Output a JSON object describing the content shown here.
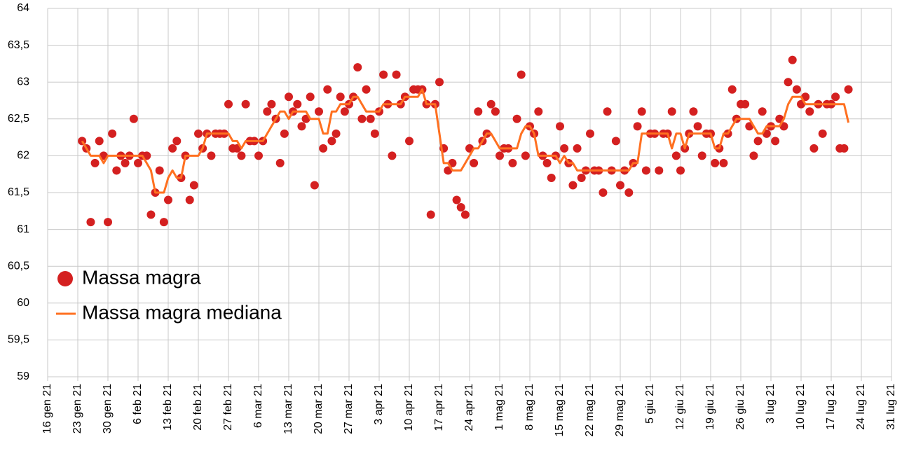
{
  "chart_data": {
    "type": "scatter-line",
    "x": [
      "2021-01-24",
      "2021-01-25",
      "2021-01-26",
      "2021-01-27",
      "2021-01-28",
      "2021-01-29",
      "2021-01-30",
      "2021-01-31",
      "2021-02-01",
      "2021-02-02",
      "2021-02-03",
      "2021-02-04",
      "2021-02-05",
      "2021-02-06",
      "2021-02-07",
      "2021-02-08",
      "2021-02-09",
      "2021-02-10",
      "2021-02-11",
      "2021-02-12",
      "2021-02-13",
      "2021-02-14",
      "2021-02-15",
      "2021-02-16",
      "2021-02-17",
      "2021-02-18",
      "2021-02-19",
      "2021-02-20",
      "2021-02-21",
      "2021-02-22",
      "2021-02-23",
      "2021-02-24",
      "2021-02-25",
      "2021-02-26",
      "2021-02-27",
      "2021-02-28",
      "2021-03-01",
      "2021-03-02",
      "2021-03-03",
      "2021-03-04",
      "2021-03-05",
      "2021-03-06",
      "2021-03-07",
      "2021-03-08",
      "2021-03-09",
      "2021-03-10",
      "2021-03-11",
      "2021-03-12",
      "2021-03-13",
      "2021-03-14",
      "2021-03-15",
      "2021-03-16",
      "2021-03-17",
      "2021-03-18",
      "2021-03-19",
      "2021-03-20",
      "2021-03-21",
      "2021-03-22",
      "2021-03-23",
      "2021-03-24",
      "2021-03-25",
      "2021-03-26",
      "2021-03-27",
      "2021-03-28",
      "2021-03-29",
      "2021-03-30",
      "2021-03-31",
      "2021-04-01",
      "2021-04-02",
      "2021-04-03",
      "2021-04-04",
      "2021-04-05",
      "2021-04-06",
      "2021-04-07",
      "2021-04-08",
      "2021-04-09",
      "2021-04-10",
      "2021-04-11",
      "2021-04-12",
      "2021-04-13",
      "2021-04-14",
      "2021-04-15",
      "2021-04-16",
      "2021-04-17",
      "2021-04-18",
      "2021-04-19",
      "2021-04-20",
      "2021-04-21",
      "2021-04-22",
      "2021-04-23",
      "2021-04-24",
      "2021-04-25",
      "2021-04-26",
      "2021-04-27",
      "2021-04-28",
      "2021-04-29",
      "2021-04-30",
      "2021-05-01",
      "2021-05-02",
      "2021-05-03",
      "2021-05-04",
      "2021-05-05",
      "2021-05-06",
      "2021-05-07",
      "2021-05-08",
      "2021-05-09",
      "2021-05-10",
      "2021-05-11",
      "2021-05-12",
      "2021-05-13",
      "2021-05-14",
      "2021-05-15",
      "2021-05-16",
      "2021-05-17",
      "2021-05-18",
      "2021-05-19",
      "2021-05-20",
      "2021-05-21",
      "2021-05-22",
      "2021-05-23",
      "2021-05-24",
      "2021-05-25",
      "2021-05-26",
      "2021-05-27",
      "2021-05-28",
      "2021-05-29",
      "2021-05-30",
      "2021-05-31",
      "2021-06-01",
      "2021-06-02",
      "2021-06-03",
      "2021-06-04",
      "2021-06-05",
      "2021-06-06",
      "2021-06-07",
      "2021-06-08",
      "2021-06-09",
      "2021-06-10",
      "2021-06-11",
      "2021-06-12",
      "2021-06-13",
      "2021-06-14",
      "2021-06-15",
      "2021-06-16",
      "2021-06-17",
      "2021-06-18",
      "2021-06-19",
      "2021-06-20",
      "2021-06-21",
      "2021-06-22",
      "2021-06-23",
      "2021-06-24",
      "2021-06-25",
      "2021-06-26",
      "2021-06-27",
      "2021-06-28",
      "2021-06-29",
      "2021-06-30",
      "2021-07-01",
      "2021-07-02",
      "2021-07-03",
      "2021-07-04",
      "2021-07-05",
      "2021-07-06",
      "2021-07-07",
      "2021-07-08",
      "2021-07-09",
      "2021-07-10",
      "2021-07-11",
      "2021-07-12",
      "2021-07-13",
      "2021-07-14",
      "2021-07-15",
      "2021-07-16",
      "2021-07-17",
      "2021-07-18",
      "2021-07-19",
      "2021-07-20",
      "2021-07-21"
    ],
    "series": [
      {
        "name": "Massa magra",
        "type": "scatter",
        "color": "#d42020",
        "values": [
          62.2,
          62.1,
          61.1,
          61.9,
          62.2,
          62.0,
          61.1,
          62.3,
          61.8,
          62.0,
          61.9,
          62.0,
          62.5,
          61.9,
          62.0,
          62.0,
          61.2,
          61.5,
          61.8,
          61.1,
          61.4,
          62.1,
          62.2,
          61.7,
          62.0,
          61.4,
          61.6,
          62.3,
          62.1,
          62.3,
          62.0,
          62.3,
          62.3,
          62.3,
          62.7,
          62.1,
          62.1,
          62.0,
          62.7,
          62.2,
          62.2,
          62.0,
          62.2,
          62.6,
          62.7,
          62.5,
          61.9,
          62.3,
          62.8,
          62.6,
          62.7,
          62.4,
          62.5,
          62.8,
          61.6,
          62.6,
          62.1,
          62.9,
          62.2,
          62.3,
          62.8,
          62.6,
          62.7,
          62.8,
          63.2,
          62.5,
          62.9,
          62.5,
          62.3,
          62.6,
          63.1,
          62.7,
          62.0,
          63.1,
          62.7,
          62.8,
          62.2,
          62.9,
          62.9,
          62.9,
          62.7,
          61.2,
          62.7,
          63.0,
          62.1,
          61.8,
          61.9,
          61.4,
          61.3,
          61.2,
          62.1,
          61.9,
          62.6,
          62.2,
          62.3,
          62.7,
          62.6,
          62.0,
          62.1,
          62.1,
          61.9,
          62.5,
          63.1,
          62.0,
          62.4,
          62.3,
          62.6,
          62.0,
          61.9,
          61.7,
          62.0,
          62.4,
          62.1,
          61.9,
          61.6,
          62.1,
          61.7,
          61.8,
          62.3,
          61.8,
          61.8,
          61.5,
          62.6,
          61.8,
          62.2,
          61.6,
          61.8,
          61.5,
          61.9,
          62.4,
          62.6,
          61.8,
          62.3,
          62.3,
          61.8,
          62.3,
          62.3,
          62.6,
          62.0,
          61.8,
          62.1,
          62.3,
          62.6,
          62.4,
          62.0,
          62.3,
          62.3,
          61.9,
          62.1,
          61.9,
          62.3,
          62.9,
          62.5,
          62.7,
          62.7,
          62.4,
          62.0,
          62.2,
          62.6,
          62.3,
          62.4,
          62.2,
          62.5,
          62.4,
          63.0,
          63.3,
          62.9,
          62.7,
          62.8,
          62.6,
          62.1,
          62.7,
          62.3,
          62.7,
          62.7,
          62.8,
          62.1,
          62.1,
          62.9
        ]
      },
      {
        "name": "Massa magra mediana",
        "type": "line",
        "color": "#ff7020",
        "values": [
          62.2,
          62.1,
          62.0,
          62.0,
          62.0,
          61.9,
          62.0,
          62.0,
          62.0,
          62.0,
          62.0,
          62.0,
          62.0,
          62.0,
          62.0,
          61.9,
          61.8,
          61.5,
          61.5,
          61.5,
          61.7,
          61.8,
          61.7,
          61.7,
          62.0,
          62.0,
          62.0,
          62.0,
          62.1,
          62.3,
          62.3,
          62.3,
          62.3,
          62.3,
          62.3,
          62.2,
          62.2,
          62.1,
          62.2,
          62.2,
          62.2,
          62.2,
          62.2,
          62.3,
          62.4,
          62.5,
          62.6,
          62.6,
          62.5,
          62.6,
          62.6,
          62.6,
          62.6,
          62.5,
          62.5,
          62.5,
          62.3,
          62.3,
          62.6,
          62.6,
          62.7,
          62.7,
          62.7,
          62.8,
          62.8,
          62.7,
          62.6,
          62.6,
          62.6,
          62.6,
          62.7,
          62.7,
          62.7,
          62.7,
          62.7,
          62.8,
          62.8,
          62.8,
          62.8,
          62.9,
          62.7,
          62.7,
          62.7,
          62.3,
          61.9,
          61.9,
          61.8,
          61.8,
          61.8,
          61.9,
          62.0,
          62.1,
          62.1,
          62.2,
          62.3,
          62.3,
          62.2,
          62.1,
          62.1,
          62.1,
          62.1,
          62.1,
          62.3,
          62.4,
          62.4,
          62.3,
          62.0,
          62.0,
          62.0,
          62.0,
          62.0,
          61.9,
          62.0,
          61.9,
          61.9,
          61.8,
          61.8,
          61.8,
          61.8,
          61.8,
          61.8,
          61.8,
          61.8,
          61.8,
          61.8,
          61.8,
          61.8,
          61.8,
          61.9,
          61.9,
          62.3,
          62.3,
          62.3,
          62.3,
          62.3,
          62.3,
          62.3,
          62.1,
          62.3,
          62.3,
          62.1,
          62.3,
          62.3,
          62.3,
          62.3,
          62.3,
          62.3,
          62.1,
          62.1,
          62.3,
          62.3,
          62.4,
          62.5,
          62.5,
          62.5,
          62.5,
          62.4,
          62.3,
          62.3,
          62.4,
          62.4,
          62.4,
          62.4,
          62.5,
          62.7,
          62.8,
          62.8,
          62.8,
          62.7,
          62.7,
          62.7,
          62.7,
          62.7,
          62.7,
          62.7,
          62.7,
          62.7,
          62.7,
          62.45
        ]
      }
    ],
    "xlim": [
      "2021-01-16",
      "2021-07-31"
    ],
    "xticks": [
      {
        "value": "2021-01-16",
        "label": "16 gen 21"
      },
      {
        "value": "2021-01-23",
        "label": "23 gen 21"
      },
      {
        "value": "2021-01-30",
        "label": "30 gen 21"
      },
      {
        "value": "2021-02-06",
        "label": "6 feb 21"
      },
      {
        "value": "2021-02-13",
        "label": "13 feb 21"
      },
      {
        "value": "2021-02-20",
        "label": "20 feb 21"
      },
      {
        "value": "2021-02-27",
        "label": "27 feb 21"
      },
      {
        "value": "2021-03-06",
        "label": "6 mar 21"
      },
      {
        "value": "2021-03-13",
        "label": "13 mar 21"
      },
      {
        "value": "2021-03-20",
        "label": "20 mar 21"
      },
      {
        "value": "2021-03-27",
        "label": "27 mar 21"
      },
      {
        "value": "2021-04-03",
        "label": "3 apr 21"
      },
      {
        "value": "2021-04-10",
        "label": "10 apr 21"
      },
      {
        "value": "2021-04-17",
        "label": "17 apr 21"
      },
      {
        "value": "2021-04-24",
        "label": "24 apr 21"
      },
      {
        "value": "2021-05-01",
        "label": "1 mag 21"
      },
      {
        "value": "2021-05-08",
        "label": "8 mag 21"
      },
      {
        "value": "2021-05-15",
        "label": "15 mag 21"
      },
      {
        "value": "2021-05-22",
        "label": "22 mag 21"
      },
      {
        "value": "2021-05-29",
        "label": "29 mag 21"
      },
      {
        "value": "2021-06-05",
        "label": "5 giu 21"
      },
      {
        "value": "2021-06-12",
        "label": "12 giu 21"
      },
      {
        "value": "2021-06-19",
        "label": "19 giu 21"
      },
      {
        "value": "2021-06-26",
        "label": "26 giu 21"
      },
      {
        "value": "2021-07-03",
        "label": "3 lug 21"
      },
      {
        "value": "2021-07-10",
        "label": "10 lug 21"
      },
      {
        "value": "2021-07-17",
        "label": "17 lug 21"
      },
      {
        "value": "2021-07-24",
        "label": "24 lug 21"
      },
      {
        "value": "2021-07-31",
        "label": "31 lug 21"
      }
    ],
    "ylim": [
      59,
      64
    ],
    "yticks": [
      59,
      {
        "value": 59.5,
        "label": "59,5"
      },
      60,
      {
        "value": 60.5,
        "label": "60,5"
      },
      61,
      {
        "value": 61.5,
        "label": "61,5"
      },
      62,
      {
        "value": 62.5,
        "label": "62,5"
      },
      63,
      {
        "value": 63.5,
        "label": "63,5"
      },
      64
    ],
    "grid": true,
    "legend": "left"
  }
}
